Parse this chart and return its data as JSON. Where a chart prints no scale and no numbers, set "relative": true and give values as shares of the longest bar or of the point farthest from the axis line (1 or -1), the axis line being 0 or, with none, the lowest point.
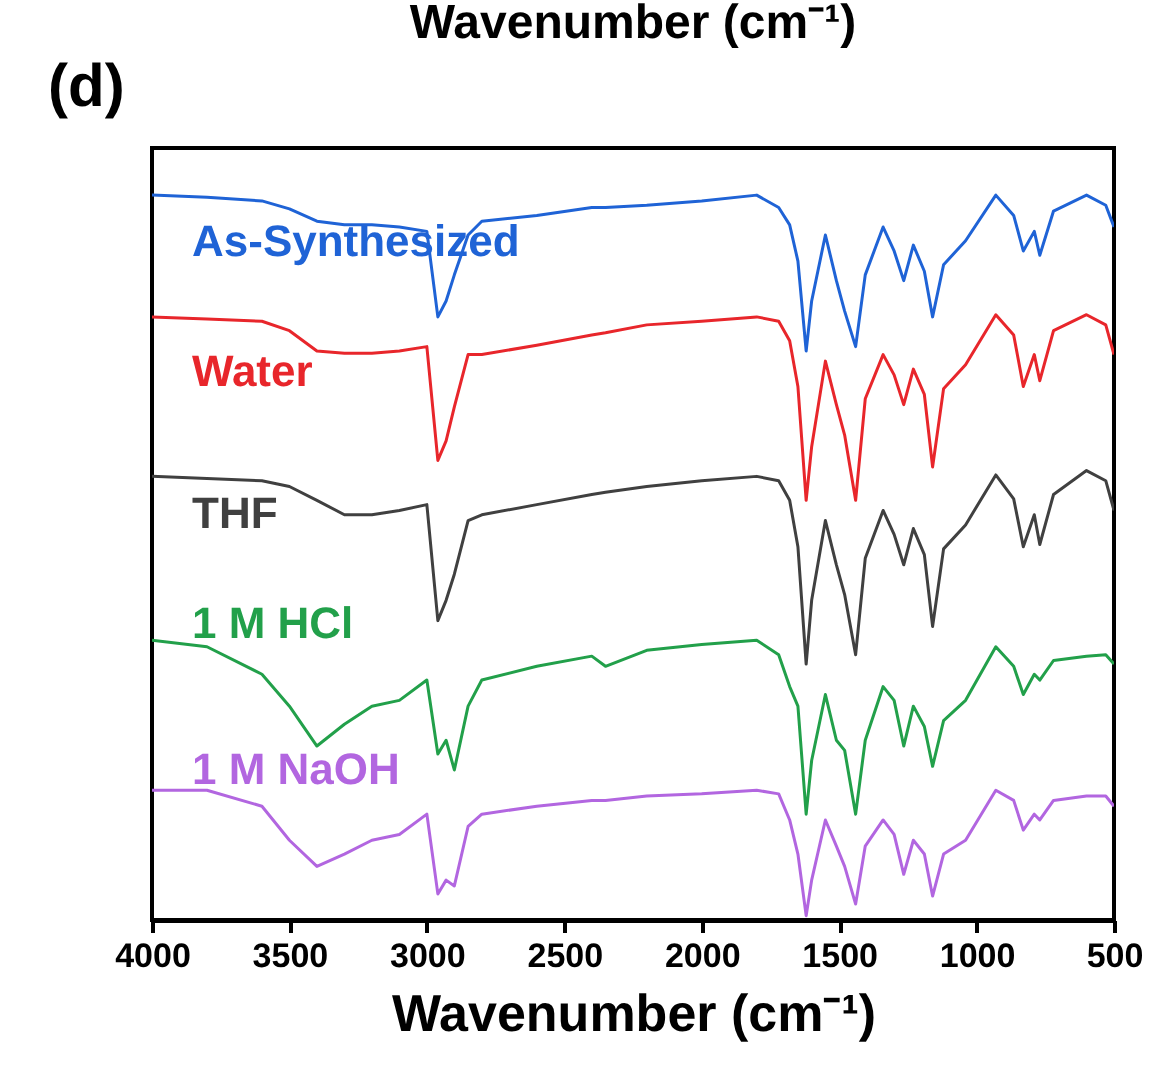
{
  "chart_data": {
    "type": "line",
    "relative": true,
    "xlabel": "Wavenumber (cm⁻¹)",
    "annotations": [
      "(d)",
      "Wavenumber (cm⁻¹)"
    ],
    "x": [
      4000,
      3800,
      3600,
      3500,
      3400,
      3300,
      3200,
      3100,
      3000,
      2960,
      2930,
      2900,
      2850,
      2800,
      2600,
      2400,
      2350,
      2200,
      2000,
      1800,
      1720,
      1680,
      1650,
      1620,
      1600,
      1550,
      1510,
      1480,
      1440,
      1405,
      1340,
      1300,
      1265,
      1230,
      1190,
      1160,
      1120,
      1040,
      930,
      865,
      830,
      790,
      770,
      720,
      600,
      530,
      500
    ],
    "xlim": [
      4000,
      500
    ],
    "xticks": [
      4000,
      3500,
      3000,
      2500,
      2000,
      1500,
      1000,
      500
    ],
    "grid": false,
    "line_style": "solid",
    "marker": "none",
    "series": [
      {
        "name": "As-Synthesized",
        "color": "#1f63d6",
        "values": [
          1.0,
          0.997,
          0.992,
          0.981,
          0.964,
          0.959,
          0.959,
          0.956,
          0.95,
          0.832,
          0.854,
          0.89,
          0.945,
          0.964,
          0.972,
          0.983,
          0.983,
          0.986,
          0.992,
          1.0,
          0.983,
          0.959,
          0.909,
          0.785,
          0.854,
          0.945,
          0.882,
          0.84,
          0.791,
          0.89,
          0.956,
          0.923,
          0.882,
          0.931,
          0.895,
          0.832,
          0.904,
          0.937,
          1.0,
          0.972,
          0.923,
          0.95,
          0.917,
          0.978,
          1.0,
          0.986,
          0.956
        ]
      },
      {
        "name": "Water",
        "color": "#e8262b",
        "values": [
          0.832,
          0.829,
          0.826,
          0.813,
          0.785,
          0.782,
          0.782,
          0.785,
          0.791,
          0.634,
          0.661,
          0.708,
          0.78,
          0.78,
          0.793,
          0.807,
          0.81,
          0.821,
          0.826,
          0.832,
          0.826,
          0.799,
          0.736,
          0.579,
          0.653,
          0.771,
          0.711,
          0.669,
          0.579,
          0.719,
          0.78,
          0.752,
          0.711,
          0.76,
          0.725,
          0.625,
          0.733,
          0.766,
          0.835,
          0.807,
          0.736,
          0.78,
          0.744,
          0.813,
          0.835,
          0.821,
          0.78
        ]
      },
      {
        "name": "THF",
        "color": "#404040",
        "values": [
          0.612,
          0.609,
          0.606,
          0.598,
          0.579,
          0.559,
          0.559,
          0.565,
          0.573,
          0.413,
          0.441,
          0.477,
          0.551,
          0.559,
          0.573,
          0.587,
          0.59,
          0.598,
          0.606,
          0.612,
          0.606,
          0.579,
          0.515,
          0.353,
          0.441,
          0.551,
          0.49,
          0.449,
          0.366,
          0.499,
          0.565,
          0.532,
          0.49,
          0.54,
          0.504,
          0.405,
          0.512,
          0.545,
          0.614,
          0.581,
          0.515,
          0.559,
          0.518,
          0.587,
          0.62,
          0.606,
          0.565
        ]
      },
      {
        "name": "1 M HCl",
        "color": "#22a04a",
        "values": [
          0.386,
          0.377,
          0.339,
          0.295,
          0.24,
          0.27,
          0.295,
          0.303,
          0.331,
          0.229,
          0.248,
          0.207,
          0.295,
          0.331,
          0.35,
          0.364,
          0.35,
          0.372,
          0.38,
          0.386,
          0.366,
          0.322,
          0.295,
          0.146,
          0.22,
          0.311,
          0.248,
          0.234,
          0.146,
          0.248,
          0.322,
          0.303,
          0.24,
          0.295,
          0.267,
          0.212,
          0.275,
          0.303,
          0.377,
          0.35,
          0.311,
          0.339,
          0.331,
          0.358,
          0.364,
          0.366,
          0.353
        ]
      },
      {
        "name": "1 M NaOH",
        "color": "#b266e0",
        "values": [
          0.179,
          0.179,
          0.157,
          0.11,
          0.074,
          0.091,
          0.11,
          0.118,
          0.146,
          0.036,
          0.055,
          0.047,
          0.129,
          0.146,
          0.157,
          0.165,
          0.165,
          0.171,
          0.174,
          0.179,
          0.174,
          0.138,
          0.091,
          0.006,
          0.055,
          0.138,
          0.102,
          0.074,
          0.022,
          0.102,
          0.138,
          0.118,
          0.063,
          0.11,
          0.091,
          0.033,
          0.091,
          0.11,
          0.179,
          0.165,
          0.124,
          0.146,
          0.138,
          0.165,
          0.171,
          0.171,
          0.157
        ]
      }
    ]
  }
}
